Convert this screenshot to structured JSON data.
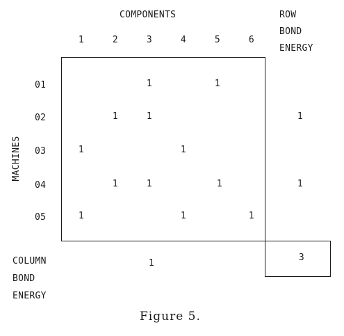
{
  "components_header": "COMPONENTS",
  "row_bond_header": [
    "ROW",
    "BOND",
    "ENERGY"
  ],
  "machines_label": "MACHINES",
  "column_bond_label": [
    "COLUMN",
    "BOND",
    "ENERGY"
  ],
  "column_numbers": [
    "1",
    "2",
    "3",
    "4",
    "5",
    "6"
  ],
  "rows": [
    {
      "label": "01",
      "cells": [
        "",
        "",
        "1",
        "",
        "1",
        ""
      ],
      "row_bond": ""
    },
    {
      "label": "02",
      "cells": [
        "",
        "1",
        "1",
        "",
        "",
        ""
      ],
      "row_bond": "1"
    },
    {
      "label": "03",
      "cells": [
        "1",
        "",
        "",
        "1",
        "",
        ""
      ],
      "row_bond": ""
    },
    {
      "label": "04",
      "cells": [
        "",
        "1",
        "1",
        "",
        "1",
        ""
      ],
      "row_bond": "1"
    },
    {
      "label": "05",
      "cells": [
        "1",
        "",
        "",
        "1",
        "",
        "1"
      ],
      "row_bond": ""
    }
  ],
  "column_bond_values": [
    "",
    "",
    "1",
    "",
    "",
    ""
  ],
  "total_bond_energy": "3",
  "caption": "Figure 5."
}
